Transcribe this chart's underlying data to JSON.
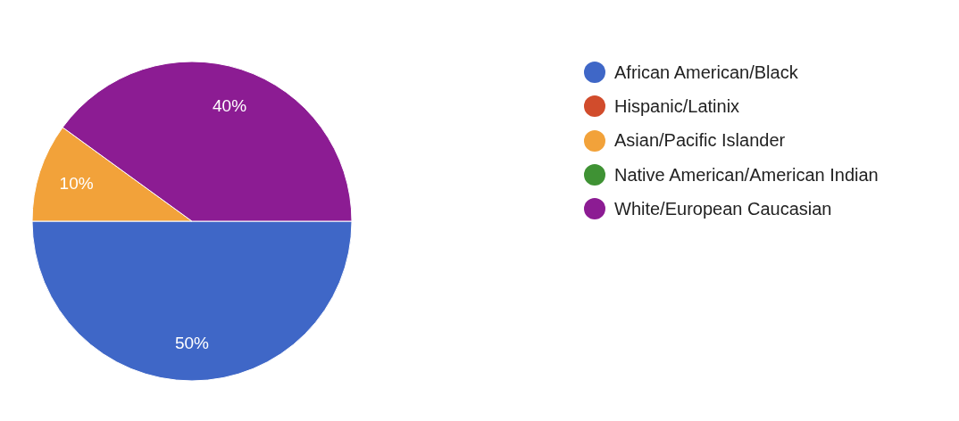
{
  "chart_data": {
    "type": "pie",
    "categories": [
      "African American/Black",
      "Hispanic/Latinix",
      "Asian/Pacific Islander",
      "Native American/American Indian",
      "White/European Caucasian"
    ],
    "values": [
      50,
      0,
      10,
      0,
      40
    ],
    "colors": [
      "#3f67c7",
      "#d14c2c",
      "#f2a23a",
      "#3f9234",
      "#8c1c93"
    ],
    "value_labels": [
      "50%",
      null,
      "10%",
      null,
      "40%"
    ],
    "legend": "right"
  }
}
